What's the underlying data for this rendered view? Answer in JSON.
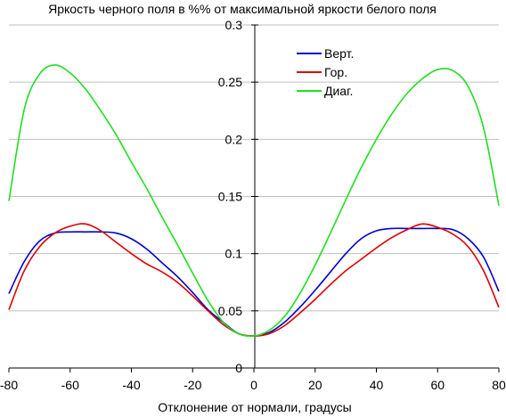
{
  "chart_data": {
    "type": "line",
    "title": "Яркость черного поля в %% от максимальной яркости белого поля",
    "xlabel": "Отклонение от нормали, градусы",
    "ylabel": "",
    "xlim": [
      -80,
      80
    ],
    "ylim": [
      0,
      0.3
    ],
    "x_ticks": [
      -80,
      -60,
      -40,
      -20,
      0,
      20,
      40,
      60,
      80
    ],
    "y_ticks": [
      0,
      0.05,
      0.1,
      0.15,
      0.2,
      0.25,
      0.3
    ],
    "grid": "horizontal",
    "legend_position": "top-right",
    "x": [
      -80,
      -75,
      -70,
      -65,
      -60,
      -55,
      -50,
      -45,
      -40,
      -35,
      -30,
      -25,
      -20,
      -15,
      -10,
      -5,
      0,
      5,
      10,
      15,
      20,
      25,
      30,
      35,
      40,
      45,
      50,
      55,
      60,
      65,
      70,
      75,
      80
    ],
    "series": [
      {
        "name": "Верт.",
        "color": "#0000cc",
        "values": [
          0.065,
          0.093,
          0.111,
          0.118,
          0.119,
          0.119,
          0.119,
          0.118,
          0.113,
          0.104,
          0.092,
          0.08,
          0.066,
          0.051,
          0.04,
          0.03,
          0.028,
          0.031,
          0.04,
          0.053,
          0.068,
          0.084,
          0.1,
          0.113,
          0.12,
          0.122,
          0.122,
          0.122,
          0.122,
          0.121,
          0.113,
          0.097,
          0.067
        ]
      },
      {
        "name": "Гор.",
        "color": "#dd0000",
        "values": [
          0.051,
          0.085,
          0.106,
          0.118,
          0.124,
          0.126,
          0.12,
          0.11,
          0.1,
          0.091,
          0.084,
          0.075,
          0.063,
          0.05,
          0.038,
          0.03,
          0.028,
          0.03,
          0.037,
          0.048,
          0.06,
          0.073,
          0.085,
          0.095,
          0.105,
          0.114,
          0.121,
          0.126,
          0.123,
          0.117,
          0.106,
          0.085,
          0.053
        ]
      },
      {
        "name": "Диаг.",
        "color": "#22dd22",
        "values": [
          0.146,
          0.226,
          0.257,
          0.265,
          0.258,
          0.244,
          0.225,
          0.204,
          0.18,
          0.157,
          0.132,
          0.108,
          0.083,
          0.059,
          0.04,
          0.03,
          0.028,
          0.033,
          0.045,
          0.065,
          0.09,
          0.118,
          0.147,
          0.175,
          0.2,
          0.222,
          0.24,
          0.253,
          0.261,
          0.26,
          0.246,
          0.21,
          0.142
        ]
      }
    ]
  }
}
